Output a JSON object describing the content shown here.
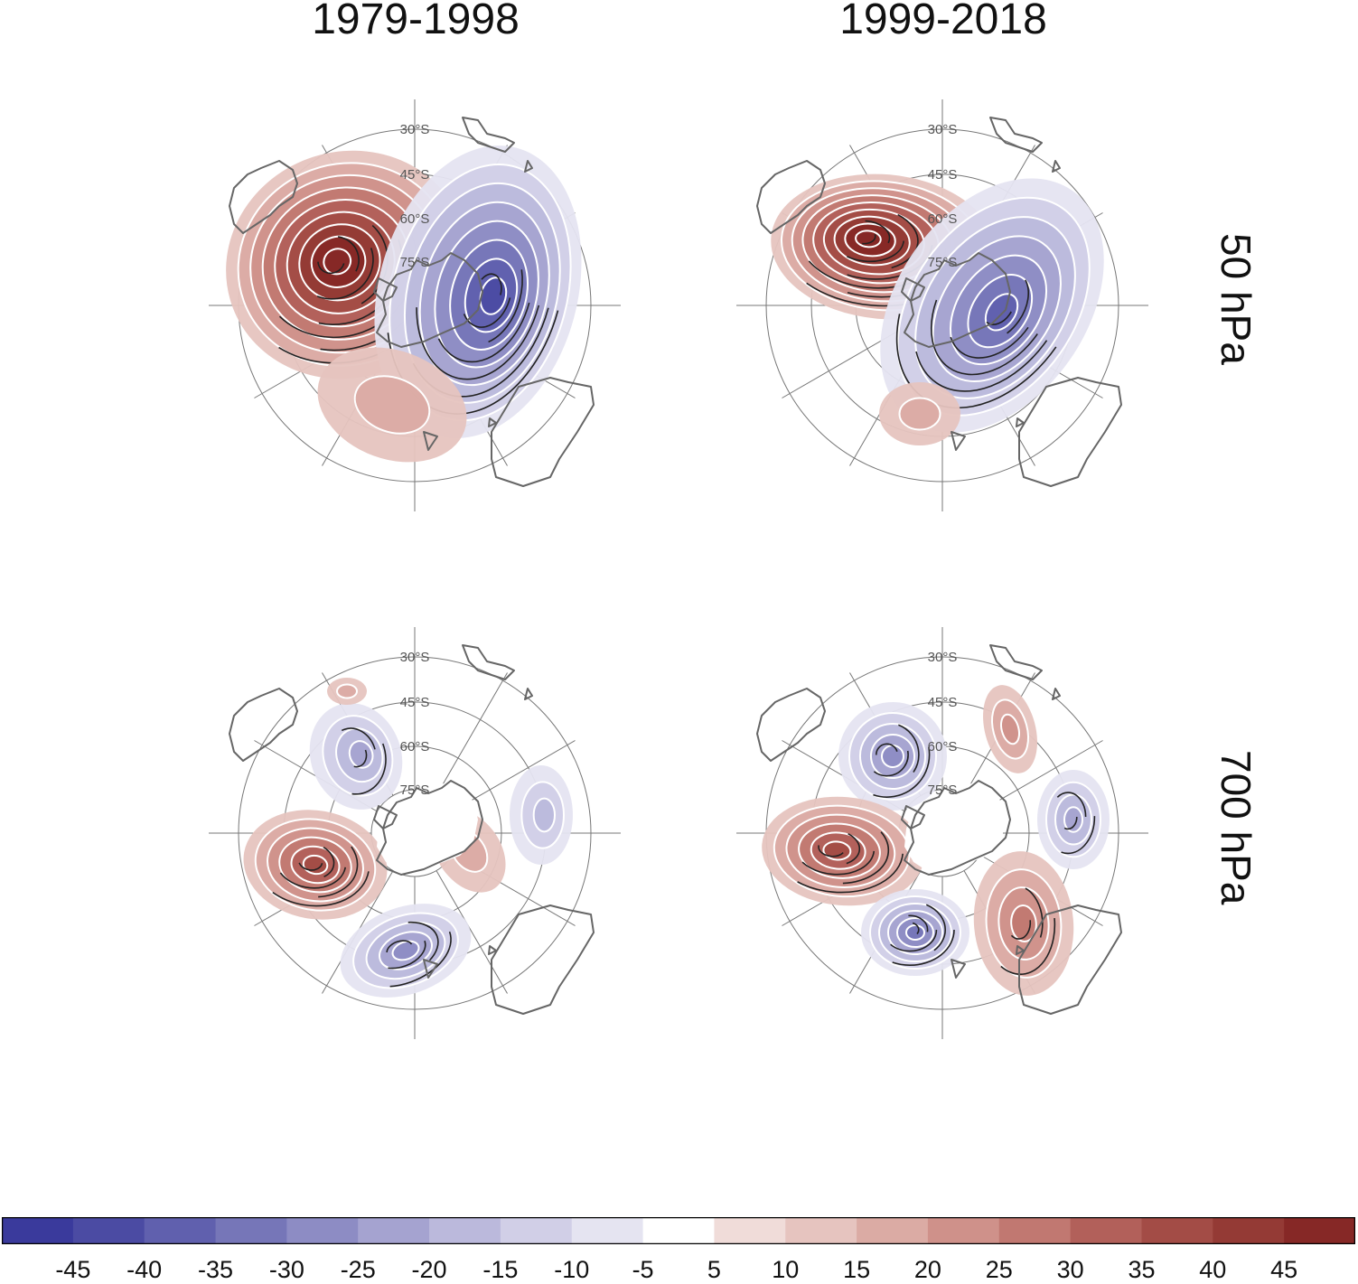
{
  "columns": [
    {
      "title": "1979-1998"
    },
    {
      "title": "1999-2018"
    }
  ],
  "rows": [
    {
      "label": "50 hPa"
    },
    {
      "label": "700 hPa"
    }
  ],
  "map": {
    "projection": "south polar stereographic",
    "latitude_labels": [
      "30°S",
      "45°S",
      "60°S",
      "75°S"
    ]
  },
  "colorbar": {
    "tick_labels": [
      "-45",
      "-40",
      "-35",
      "-30",
      "-25",
      "-20",
      "-15",
      "-10",
      "-5",
      "5",
      "10",
      "15",
      "20",
      "25",
      "30",
      "35",
      "40",
      "45"
    ],
    "colors": [
      "#3a3a9c",
      "#4b4ba3",
      "#6060ae",
      "#7676b8",
      "#8d8cc4",
      "#a5a3d0",
      "#bbb9dc",
      "#d1cfe7",
      "#e5e4f1",
      "#ffffff",
      "#f0dcd9",
      "#e6c4bf",
      "#dbaba4",
      "#cf918a",
      "#c17871",
      "#b2605a",
      "#a34c46",
      "#943a35",
      "#862826"
    ]
  },
  "fields": [
    {
      "panel": "1979-1998 50 hPa",
      "blobs": [
        {
          "sign": "positive",
          "level": 45,
          "center": "over the Antarctic Peninsula / Bellingshausen Sea"
        },
        {
          "sign": "negative",
          "level": -40,
          "center": "Atlantic–Indian sector of East Antarctica"
        },
        {
          "sign": "positive",
          "level": 10,
          "center": "Pacific sector, tongue toward New Zealand"
        }
      ]
    },
    {
      "panel": "1999-2018 50 hPa",
      "blobs": [
        {
          "sign": "positive",
          "level": 45,
          "center": "Bellingshausen / Amundsen Sea"
        },
        {
          "sign": "negative",
          "level": -35,
          "center": "Indian Ocean sector, curving around East Antarctica"
        },
        {
          "sign": "positive",
          "level": 10,
          "center": "south of Australia"
        }
      ]
    },
    {
      "panel": "1979-1998 700 hPa",
      "blobs": [
        {
          "sign": "negative",
          "level": -20,
          "center": "Drake Passage / Weddell side"
        },
        {
          "sign": "positive",
          "level": 30,
          "center": "Amundsen Sea / South Pacific"
        },
        {
          "sign": "negative",
          "level": -25,
          "center": "south of Australia"
        },
        {
          "sign": "negative",
          "level": -15,
          "center": "South Indian Ocean"
        },
        {
          "sign": "positive",
          "level": 10,
          "center": "Wilkes Land"
        },
        {
          "sign": "positive",
          "level": 10,
          "center": "South Atlantic"
        }
      ]
    },
    {
      "panel": "1999-2018 700 hPa",
      "blobs": [
        {
          "sign": "negative",
          "level": -25,
          "center": "Drake Passage / South Atlantic"
        },
        {
          "sign": "positive",
          "level": 30,
          "center": "Amundsen Sea / South Pacific"
        },
        {
          "sign": "negative",
          "level": -30,
          "center": "Ross Sea / south of New Zealand"
        },
        {
          "sign": "positive",
          "level": 20,
          "center": "south of Australia"
        },
        {
          "sign": "negative",
          "level": -20,
          "center": "South Indian Ocean"
        },
        {
          "sign": "positive",
          "level": 15,
          "center": "South Atlantic / Africa"
        }
      ]
    }
  ]
}
